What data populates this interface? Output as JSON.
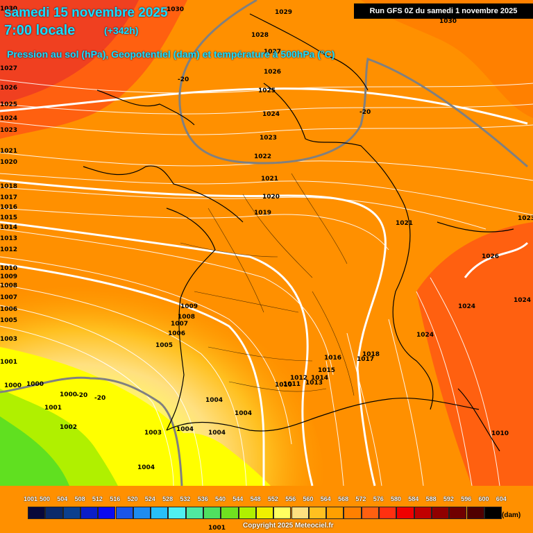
{
  "header": {
    "date": "samedi 15 novembre 2025",
    "time": "7:00 locale",
    "lead": "(+342h)",
    "subtitle": "Pression au sol (hPa), Geopotentiel (dam) et température à 500hPa (°C)"
  },
  "run_info": "Run GFS 0Z du samedi 1 novembre 2025",
  "copyright": "Copyright 2025 Meteociel.fr",
  "legend": {
    "unit": "(dam)",
    "values": [
      "500",
      "504",
      "508",
      "512",
      "516",
      "520",
      "524",
      "528",
      "532",
      "536",
      "540",
      "544",
      "548",
      "552",
      "556",
      "560",
      "564",
      "568",
      "572",
      "576",
      "580",
      "584",
      "588",
      "592",
      "596",
      "600",
      "604"
    ],
    "colors": [
      "#08083a",
      "#0b2a6a",
      "#0b3f8e",
      "#0a1ec8",
      "#0a0af0",
      "#1a55e8",
      "#1e8cf0",
      "#28c0f8",
      "#50f0f0",
      "#50e8a0",
      "#50e060",
      "#70e020",
      "#b0f000",
      "#f0f000",
      "#ffff60",
      "#ffe080",
      "#ffc020",
      "#ffa000",
      "#ff8000",
      "#ff6010",
      "#ff3010",
      "#f00000",
      "#c00000",
      "#900000",
      "#700000",
      "#500000",
      "#000000"
    ]
  },
  "isobars": [
    "1030",
    "1029",
    "1028",
    "1027",
    "1026",
    "1025",
    "1024",
    "1023",
    "1022",
    "1021",
    "1020",
    "1019",
    "1018",
    "1017",
    "1016",
    "1015",
    "1014",
    "1013",
    "1012",
    "1011",
    "1010",
    "1009",
    "1008",
    "1007",
    "1006",
    "1005",
    "1004",
    "1003",
    "1002",
    "1001",
    "1000"
  ],
  "isotherm_label": "-20",
  "geo_colors": {
    "low": "#ffff00",
    "mid": "#ffa000",
    "high": "#e07a00",
    "north": "#f05020",
    "south": "#60e020"
  }
}
